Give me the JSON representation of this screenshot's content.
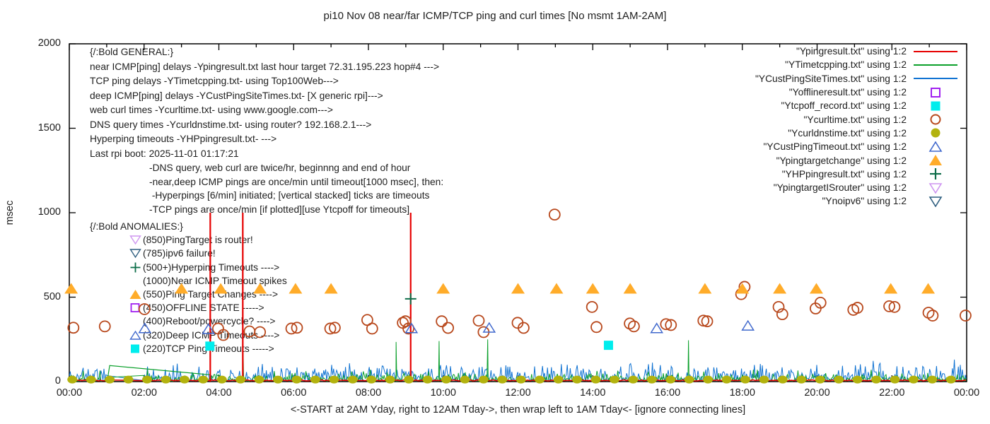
{
  "title": "pi10 Nov 08  near/far ICMP/TCP ping and curl times [No msmt 1AM-2AM]",
  "xlabel": "<-START at 2AM Yday, right to 12AM Tday->, then wrap left to 1AM Tday<- [ignore connecting lines]",
  "ylabel": "msec",
  "legend": [
    {
      "label": "\"Ypingresult.txt\" using 1:2",
      "style": "line",
      "color": "#e60000"
    },
    {
      "label": "\"YTimetcpping.txt\" using 1:2",
      "style": "line",
      "color": "#0ba02b"
    },
    {
      "label": "\"YCustPingSiteTimes.txt\" using 1:2",
      "style": "line",
      "color": "#1173d2"
    },
    {
      "label": "\"Yofflineresult.txt\" using 1:2",
      "style": "square-open",
      "color": "#a020f0"
    },
    {
      "label": "\"Ytcpoff_record.txt\" using 1:2",
      "style": "square-filled",
      "color": "#00eded"
    },
    {
      "label": "\"Ycurltime.txt\" using 1:2",
      "style": "circle-open",
      "color": "#b8481c"
    },
    {
      "label": "\"Ycurldnstime.txt\" using 1:2",
      "style": "circle-filled",
      "color": "#b2b20e"
    },
    {
      "label": "\"YCustPingTimeout.txt\" using 1:2",
      "style": "triangle-up-open",
      "color": "#4169cd"
    },
    {
      "label": "\"Ypingtargetchange\" using 1:2",
      "style": "triangle-up-filled",
      "color": "#ffac2a"
    },
    {
      "label": "\"YHPpingresult.txt\" using 1:2",
      "style": "plus",
      "color": "#0e6e4a"
    },
    {
      "label": "\"YpingtargetISrouter\" using 1:2",
      "style": "triangle-down-open",
      "color": "#cf96f0"
    },
    {
      "label": "\"Ynoipv6\" using 1:2",
      "style": "triangle-down-open",
      "color": "#2f5f80"
    }
  ],
  "annotations": {
    "general_heading": "{/:Bold GENERAL:}",
    "general_lines": [
      "near ICMP[ping] delays -Ypingresult.txt last hour target 72.31.195.223 hop#4 --->",
      "TCP ping delays -YTimetcpping.txt- using Top100Web--->",
      "deep ICMP[ping] delays -YCustPingSiteTimes.txt- [X generic rpi]--->",
      "web curl times -Ycurltime.txt- using www.google.com--->",
      "DNS query times -Ycurldnstime.txt- using router? 192.168.2.1--->",
      "Hyperping timeouts -YHPpingresult.txt- --->",
      "Last rpi boot: 2025-11-01 01:17:21"
    ],
    "general_details": [
      "-DNS query, web curl are twice/hr, beginnng and end of hour",
      "-near,deep ICMP pings are once/min until timeout[1000 msec], then:",
      " -Hyperpings [6/min] initiated; [vertical stacked] ticks are timeouts",
      "-TCP pings are once/min [if plotted][use Ytcpoff for timeouts]"
    ],
    "anomalies_heading": "{/:Bold ANOMALIES:}",
    "anomalies_items": [
      {
        "marker": "triangle-down-open",
        "color": "#cf96f0",
        "text": "(850)PingTarget is router!"
      },
      {
        "marker": "triangle-down-open",
        "color": "#2f5f80",
        "text": "(785)ipv6 failure!"
      },
      {
        "marker": "plus",
        "color": "#0e6e4a",
        "text": "(500+)Hyperping Timeouts ---->"
      },
      {
        "marker": null,
        "color": null,
        "text": "(1000)Near ICMP Timeout spikes"
      },
      {
        "marker": "triangle-up-filled",
        "color": "#ffac2a",
        "text": "(550)Ping Target Changes ---->"
      },
      {
        "marker": "square-open",
        "color": "#a020f0",
        "text": "(450)OFFLINE STATE ----->"
      },
      {
        "marker": null,
        "color": null,
        "text": "(400)Reboot/powercycle? ---->"
      },
      {
        "marker": "triangle-up-open",
        "color": "#4169cd",
        "text": "(320)Deep ICMP Timeouts ---->"
      },
      {
        "marker": "square-filled",
        "color": "#00eded",
        "text": "(220)TCP Ping Timeouts ----->"
      }
    ]
  },
  "chart_data": {
    "type": "line+scatter",
    "x_axis": {
      "unit": "hours",
      "range": [
        0,
        24
      ],
      "tick_labels": [
        "00:00",
        "02:00",
        "04:00",
        "06:00",
        "08:00",
        "10:00",
        "12:00",
        "14:00",
        "16:00",
        "18:00",
        "20:00",
        "22:00",
        "00:00"
      ],
      "minor_tick_every_hours": 1
    },
    "y_axis": {
      "unit": "msec",
      "range": [
        0,
        2000
      ],
      "tick_values": [
        0,
        500,
        1000,
        1500,
        2000
      ]
    },
    "measurement_gap_hours": [
      1.03,
      1.98
    ],
    "series": [
      {
        "name": "Ypingresult.txt",
        "style": "line",
        "color": "#e60000",
        "baseline_msec": [
          4,
          10
        ],
        "timeout_spikes": [
          {
            "t": 3.77,
            "v": 1000
          },
          {
            "t": 4.64,
            "v": 1000
          },
          {
            "t": 9.13,
            "v": 1000
          }
        ]
      },
      {
        "name": "YTimetcpping.txt",
        "style": "line",
        "color": "#0ba02b",
        "noise_band_msec": [
          2,
          55
        ],
        "spikes": [
          {
            "t": 4.65,
            "v": 170
          },
          {
            "t": 8.74,
            "v": 235
          },
          {
            "t": 9.89,
            "v": 240
          },
          {
            "t": 11.19,
            "v": 250
          },
          {
            "t": 16.56,
            "v": 245
          }
        ],
        "connecting_line": [
          [
            1.02,
            12
          ],
          [
            1.08,
            95
          ],
          [
            3.78,
            40
          ]
        ]
      },
      {
        "name": "YCustPingSiteTimes.txt",
        "style": "line",
        "color": "#1173d2",
        "noise_band_msec": [
          4,
          115
        ]
      },
      {
        "name": "Yofflineresult.txt",
        "style": "square-open",
        "color": "#a020f0",
        "points": []
      },
      {
        "name": "Ytcpoff_record.txt",
        "style": "square-filled",
        "color": "#00eded",
        "points": [
          [
            3.76,
            210
          ],
          [
            14.42,
            215
          ]
        ]
      },
      {
        "name": "Ycurltime.txt",
        "style": "circle-open",
        "color": "#b8481c",
        "points": [
          [
            0.11,
            319
          ],
          [
            0.95,
            327
          ],
          [
            2.01,
            429
          ],
          [
            3.98,
            314
          ],
          [
            4.12,
            276
          ],
          [
            4.82,
            297
          ],
          [
            5.1,
            293
          ],
          [
            5.94,
            314
          ],
          [
            6.09,
            319
          ],
          [
            6.98,
            314
          ],
          [
            7.1,
            319
          ],
          [
            7.97,
            365
          ],
          [
            8.1,
            314
          ],
          [
            8.92,
            348
          ],
          [
            8.99,
            357
          ],
          [
            9.07,
            314
          ],
          [
            9.96,
            357
          ],
          [
            10.13,
            318
          ],
          [
            10.95,
            361
          ],
          [
            11.08,
            293
          ],
          [
            11.99,
            348
          ],
          [
            12.15,
            318
          ],
          [
            12.98,
            989
          ],
          [
            13.98,
            442
          ],
          [
            14.1,
            323
          ],
          [
            14.99,
            344
          ],
          [
            15.1,
            327
          ],
          [
            15.96,
            340
          ],
          [
            16.09,
            335
          ],
          [
            16.96,
            361
          ],
          [
            17.06,
            357
          ],
          [
            17.97,
            518
          ],
          [
            18.06,
            561
          ],
          [
            18.97,
            442
          ],
          [
            19.07,
            399
          ],
          [
            19.96,
            433
          ],
          [
            20.09,
            467
          ],
          [
            20.97,
            425
          ],
          [
            21.08,
            437
          ],
          [
            21.93,
            446
          ],
          [
            22.07,
            442
          ],
          [
            22.98,
            408
          ],
          [
            23.09,
            391
          ],
          [
            23.97,
            391
          ]
        ]
      },
      {
        "name": "Ycurldnstime.txt",
        "style": "circle-filled",
        "color": "#b2b20e",
        "interval": {
          "start": 0.08,
          "end": 23.97,
          "step": 0.5,
          "value": 12
        }
      },
      {
        "name": "YCustPingTimeout.txt",
        "style": "triangle-up-open",
        "color": "#4169cd",
        "points": [
          [
            2.02,
            315
          ],
          [
            3.72,
            310
          ],
          [
            9.15,
            315
          ],
          [
            11.23,
            318
          ],
          [
            15.71,
            315
          ],
          [
            18.15,
            330
          ]
        ]
      },
      {
        "name": "Ypingtargetchange",
        "style": "triangle-up-filled",
        "color": "#ffac2a",
        "value_msec": 550,
        "hours": [
          0.05,
          3.0,
          4.05,
          5.1,
          6.05,
          7.0,
          10.0,
          12.0,
          13.03,
          14.0,
          15.0,
          17.0,
          18.0,
          19.0,
          19.98,
          21.97,
          22.97
        ]
      },
      {
        "name": "YHPpingresult.txt",
        "style": "plus",
        "color": "#0e6e4a",
        "points": [
          [
            9.13,
            490
          ]
        ]
      },
      {
        "name": "YpingtargetISrouter",
        "style": "triangle-down-open",
        "color": "#cf96f0",
        "points": []
      },
      {
        "name": "Ynoipv6",
        "style": "triangle-down-open",
        "color": "#2f5f80",
        "points": []
      }
    ]
  }
}
